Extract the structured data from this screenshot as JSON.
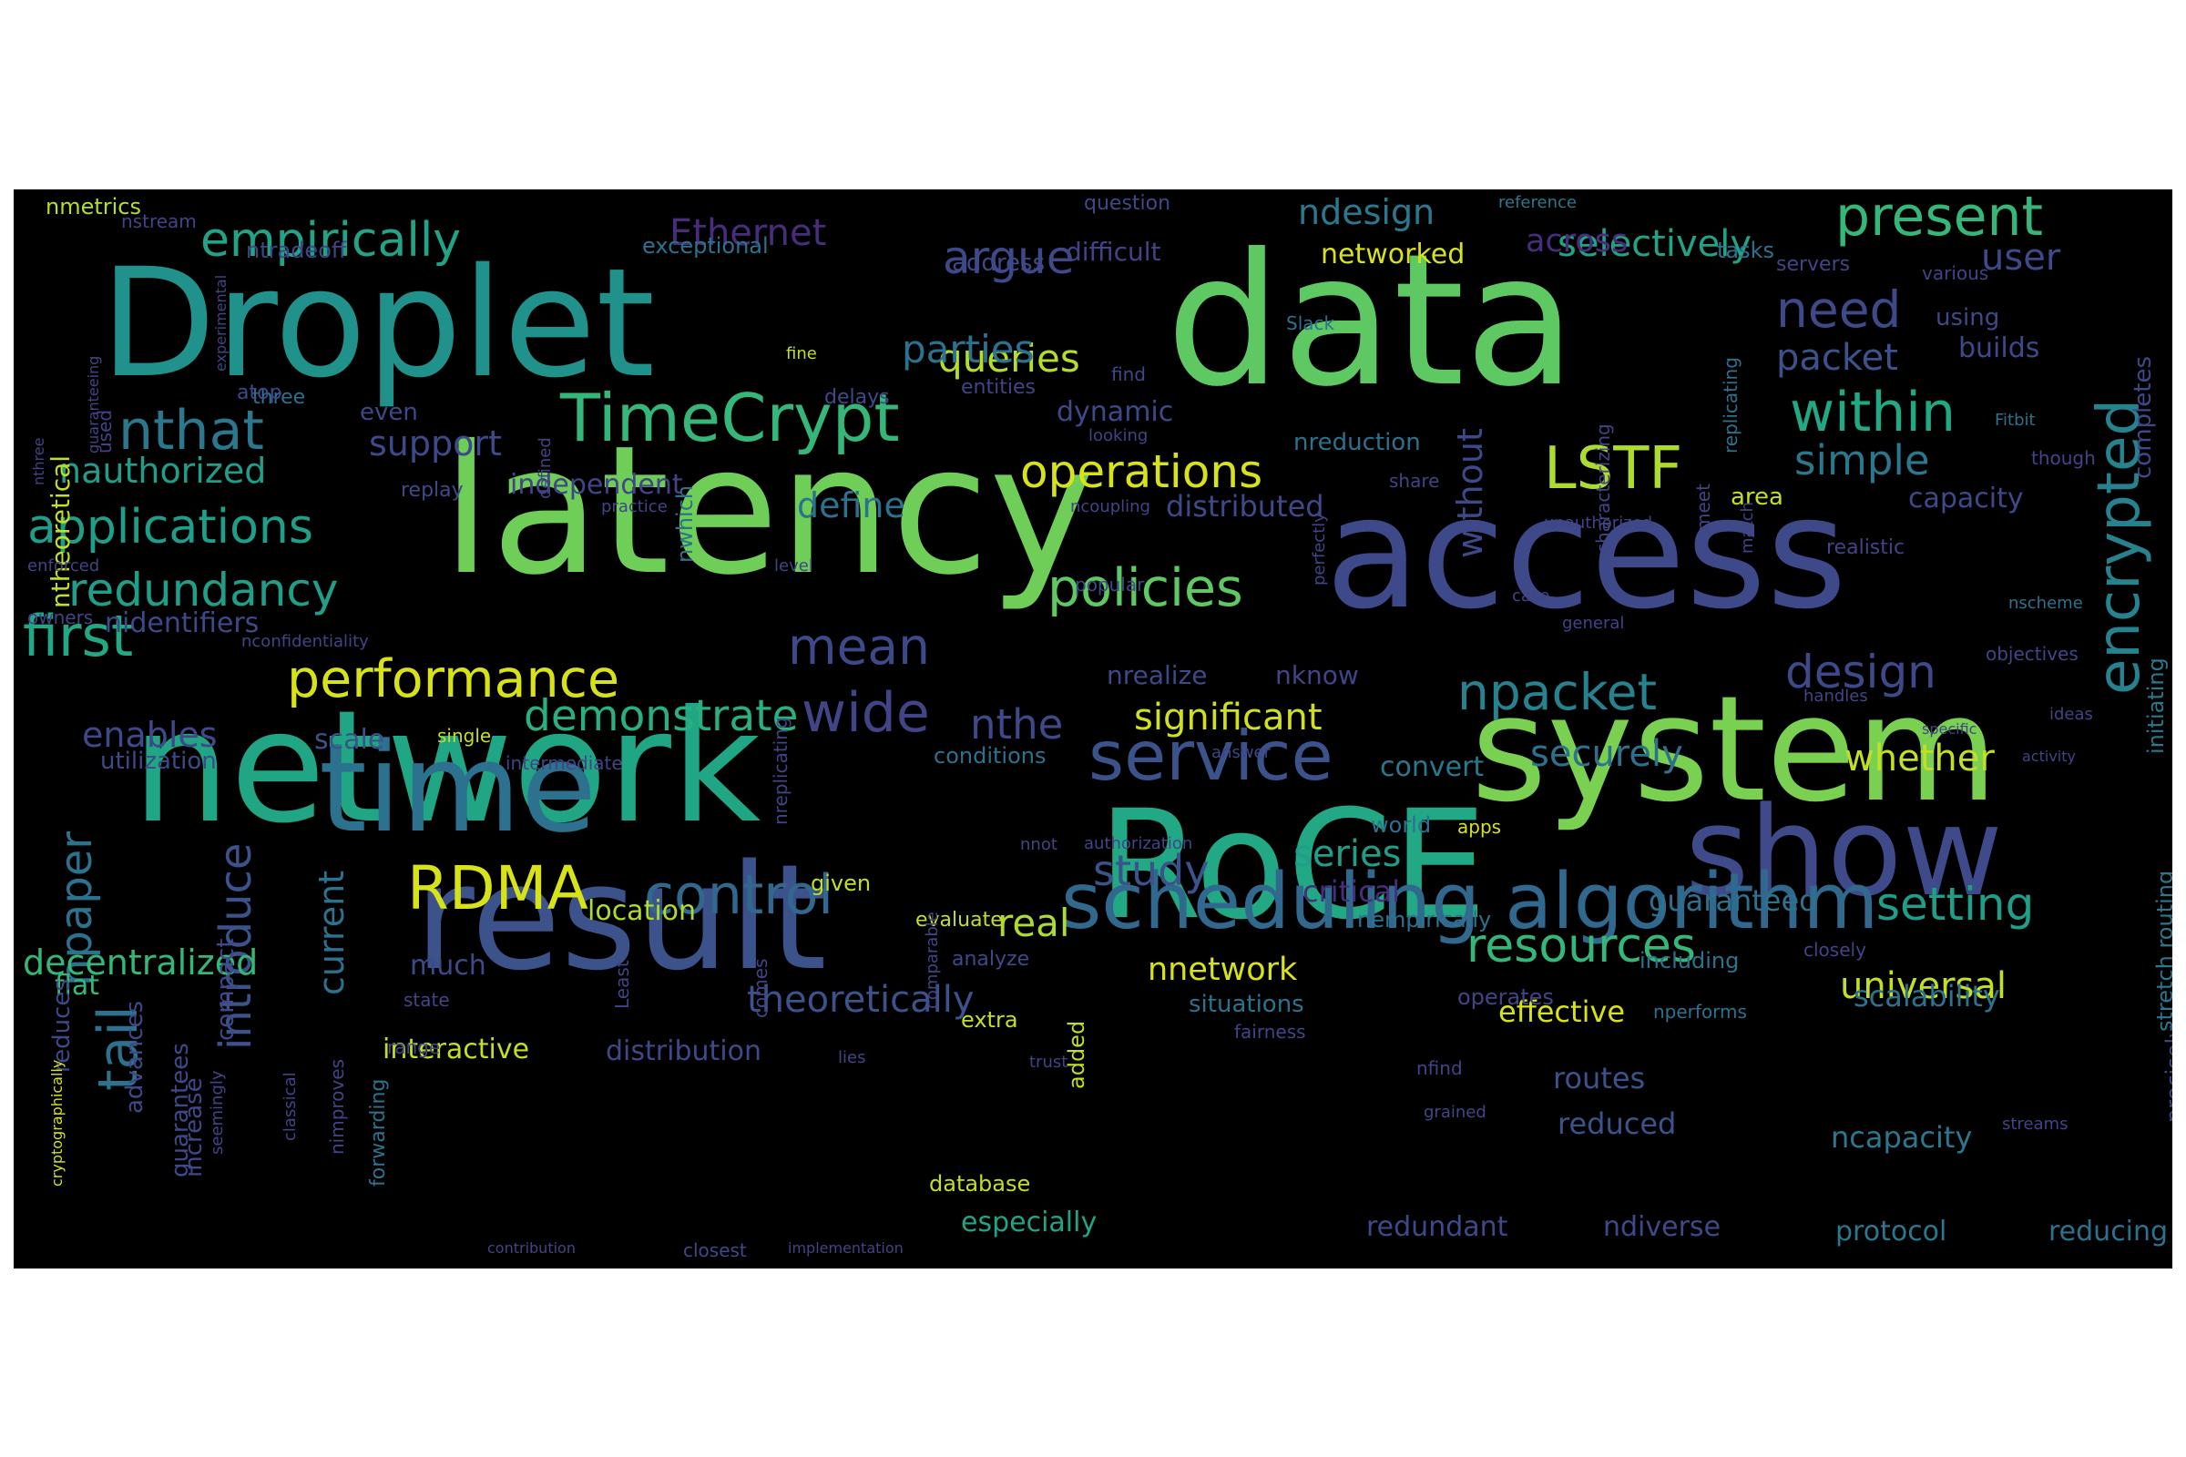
{
  "palette": {
    "background": "#000000",
    "page": "#ffffff",
    "word_colors": [
      "#fde725",
      "#b5de2b",
      "#6ece58",
      "#35b779",
      "#1f9e89",
      "#26828e",
      "#31688e",
      "#3e4989",
      "#482878",
      "#440154"
    ]
  },
  "words": [
    {
      "text": "data",
      "color": "#5ec962"
    },
    {
      "text": "latency",
      "color": "#6ece58"
    },
    {
      "text": "access",
      "color": "#3e4989"
    },
    {
      "text": "Droplet",
      "color": "#21918c"
    },
    {
      "text": "network",
      "color": "#21a685"
    },
    {
      "text": "system",
      "color": "#7ad151"
    },
    {
      "text": "result",
      "color": "#3b528b"
    },
    {
      "text": "RoCE",
      "color": "#22a884"
    },
    {
      "text": "show",
      "color": "#3e4a89"
    },
    {
      "text": "time",
      "color": "#2c728e"
    },
    {
      "text": "scheduling algorithm",
      "color": "#31688e"
    },
    {
      "text": "service",
      "color": "#3b528b"
    },
    {
      "text": "TimeCrypt",
      "color": "#35b779"
    },
    {
      "text": "encrypted",
      "color": "#26828e"
    },
    {
      "text": "LSTF",
      "color": "#addc30"
    },
    {
      "text": "RDMA",
      "color": "#d8e219"
    },
    {
      "text": "control",
      "color": "#31688e"
    },
    {
      "text": "present",
      "color": "#35b779"
    },
    {
      "text": "performance",
      "color": "#d8e219"
    },
    {
      "text": "npacket",
      "color": "#26828e"
    },
    {
      "text": "wide",
      "color": "#414487"
    },
    {
      "text": "policies",
      "color": "#5ec962"
    },
    {
      "text": "first",
      "color": "#22a884"
    },
    {
      "text": "nthat",
      "color": "#2a788e"
    },
    {
      "text": "within",
      "color": "#22a884"
    },
    {
      "text": "operations",
      "color": "#d8e219"
    },
    {
      "text": "applications",
      "color": "#1f9e89"
    },
    {
      "text": "empirically",
      "color": "#20a386"
    },
    {
      "text": "resources",
      "color": "#35b779"
    },
    {
      "text": "demonstrate",
      "color": "#2ab07f"
    },
    {
      "text": "mean",
      "color": "#3e4989"
    },
    {
      "text": "argue",
      "color": "#3e4989"
    },
    {
      "text": "setting",
      "color": "#1f9e89"
    },
    {
      "text": "design",
      "color": "#3e4989"
    },
    {
      "text": "need",
      "color": "#3e4989"
    },
    {
      "text": "redundancy",
      "color": "#1f9e89"
    },
    {
      "text": "tail",
      "color": "#2c728e"
    },
    {
      "text": "npaper",
      "color": "#2c728e"
    },
    {
      "text": "introduce",
      "color": "#3b528b"
    },
    {
      "text": "universal",
      "color": "#c2df23"
    },
    {
      "text": "study",
      "color": "#3b528b"
    },
    {
      "text": "simple",
      "color": "#2a788e"
    },
    {
      "text": "theoretically",
      "color": "#3b528b"
    },
    {
      "text": "significant",
      "color": "#d0e11c"
    },
    {
      "text": "queries",
      "color": "#b5de2b"
    },
    {
      "text": "nthe",
      "color": "#3e4989"
    },
    {
      "text": "real",
      "color": "#addc30"
    },
    {
      "text": "parties",
      "color": "#2c728e"
    },
    {
      "text": "decentralized",
      "color": "#35b779"
    },
    {
      "text": "securely",
      "color": "#2c728e"
    },
    {
      "text": "series",
      "color": "#1f9e89"
    },
    {
      "text": "selectively",
      "color": "#20a386"
    },
    {
      "text": "packet",
      "color": "#3b528b"
    },
    {
      "text": "whether",
      "color": "#c2df23"
    },
    {
      "text": "Ethernet",
      "color": "#472d7b"
    },
    {
      "text": "current",
      "color": "#2c728e"
    },
    {
      "text": "ndesign",
      "color": "#2a788e"
    },
    {
      "text": "define",
      "color": "#2c728e"
    },
    {
      "text": "enables",
      "color": "#3e4989"
    },
    {
      "text": "nauthorized",
      "color": "#1f9e89"
    },
    {
      "text": "support",
      "color": "#3e4989"
    },
    {
      "text": "without",
      "color": "#3e4989"
    },
    {
      "text": "nnetwork",
      "color": "#d8e219"
    },
    {
      "text": "effective",
      "color": "#d8e219"
    },
    {
      "text": "interactive",
      "color": "#c2df23"
    },
    {
      "text": "distribution",
      "color": "#3e4989"
    },
    {
      "text": "location",
      "color": "#addc30"
    },
    {
      "text": "nidentifiers",
      "color": "#3e4989"
    },
    {
      "text": "networked",
      "color": "#d8e219"
    },
    {
      "text": "distributed",
      "color": "#3e4989"
    },
    {
      "text": "independent",
      "color": "#414487"
    },
    {
      "text": "across",
      "color": "#472d7b"
    },
    {
      "text": "routes",
      "color": "#3b528b"
    },
    {
      "text": "reduced",
      "color": "#3b528b"
    },
    {
      "text": "ncapacity",
      "color": "#2a788e"
    },
    {
      "text": "guaranteed",
      "color": "#2c728e"
    },
    {
      "text": "scalability",
      "color": "#2c728e"
    },
    {
      "text": "flat",
      "color": "#35b779"
    },
    {
      "text": "user",
      "color": "#3e4989"
    },
    {
      "text": "builds",
      "color": "#3e4989"
    },
    {
      "text": "capacity",
      "color": "#3e4989"
    },
    {
      "text": "dynamic",
      "color": "#3e4989"
    },
    {
      "text": "nreduction",
      "color": "#2c728e"
    },
    {
      "text": "critical",
      "color": "#472d7b"
    },
    {
      "text": "convert",
      "color": "#2a788e"
    },
    {
      "text": "nrealize",
      "color": "#3e4989"
    },
    {
      "text": "nknow",
      "color": "#414487"
    },
    {
      "text": "scale",
      "color": "#3b528b"
    },
    {
      "text": "especially",
      "color": "#20a386"
    },
    {
      "text": "redundant",
      "color": "#3e4989"
    },
    {
      "text": "ndiverse",
      "color": "#3e4989"
    },
    {
      "text": "protocol",
      "color": "#2a788e"
    },
    {
      "text": "reducing",
      "color": "#2c728e"
    },
    {
      "text": "ntheoretical",
      "color": "#c2df23"
    },
    {
      "text": "nmetrics",
      "color": "#b5de2b"
    },
    {
      "text": "ntradeoff",
      "color": "#414487"
    },
    {
      "text": "exceptional",
      "color": "#2c728e"
    },
    {
      "text": "address",
      "color": "#3e4989"
    },
    {
      "text": "difficult",
      "color": "#414487"
    },
    {
      "text": "question",
      "color": "#3e4989"
    },
    {
      "text": "reference",
      "color": "#2a788e"
    },
    {
      "text": "tasks",
      "color": "#2c728e"
    },
    {
      "text": "servers",
      "color": "#414487"
    },
    {
      "text": "various",
      "color": "#414487"
    },
    {
      "text": "using",
      "color": "#3e4989"
    },
    {
      "text": "completes",
      "color": "#3e4989"
    },
    {
      "text": "utilization",
      "color": "#3e4989"
    },
    {
      "text": "advances",
      "color": "#3e4989"
    },
    {
      "text": "compact",
      "color": "#3e4989"
    },
    {
      "text": "increase",
      "color": "#3e4989"
    },
    {
      "text": "guarantees",
      "color": "#3e4989"
    },
    {
      "text": "reduces",
      "color": "#3e4989"
    },
    {
      "text": "initiating",
      "color": "#2a788e"
    },
    {
      "text": "stretch routing",
      "color": "#2a788e"
    },
    {
      "text": "precisely",
      "color": "#3e4989"
    },
    {
      "text": "realistic",
      "color": "#414487"
    },
    {
      "text": "area",
      "color": "#c2df23"
    },
    {
      "text": "three",
      "color": "#2c728e"
    },
    {
      "text": "even",
      "color": "#3e4989"
    },
    {
      "text": "delays",
      "color": "#3e4989"
    },
    {
      "text": "entities",
      "color": "#414487"
    },
    {
      "text": "fine",
      "color": "#c2df23"
    },
    {
      "text": "Slack",
      "color": "#2c728e"
    },
    {
      "text": "find",
      "color": "#3e4989"
    },
    {
      "text": "Fitbit",
      "color": "#2c728e"
    },
    {
      "text": "though",
      "color": "#414487"
    },
    {
      "text": "objectives",
      "color": "#414487"
    },
    {
      "text": "ideas",
      "color": "#414487"
    },
    {
      "text": "activity",
      "color": "#414487"
    },
    {
      "text": "specific",
      "color": "#414487"
    },
    {
      "text": "nscheme",
      "color": "#2c728e"
    },
    {
      "text": "unauthorized",
      "color": "#414487"
    },
    {
      "text": "share",
      "color": "#414487"
    },
    {
      "text": "ncoupling",
      "color": "#414487"
    },
    {
      "text": "replay",
      "color": "#3e4989"
    },
    {
      "text": "practice",
      "color": "#414487"
    },
    {
      "text": "popular",
      "color": "#3e4989"
    },
    {
      "text": "level",
      "color": "#414487"
    },
    {
      "text": "looking",
      "color": "#414487"
    },
    {
      "text": "case",
      "color": "#414487"
    },
    {
      "text": "general",
      "color": "#414487"
    },
    {
      "text": "nwhich",
      "color": "#2c728e"
    },
    {
      "text": "defined",
      "color": "#414487"
    },
    {
      "text": "enforced",
      "color": "#414487"
    },
    {
      "text": "owners",
      "color": "#414487"
    },
    {
      "text": "nconfidentiality",
      "color": "#414487"
    },
    {
      "text": "perfectly",
      "color": "#414487"
    },
    {
      "text": "match",
      "color": "#414487"
    },
    {
      "text": "meet",
      "color": "#414487"
    },
    {
      "text": "handles",
      "color": "#414487"
    },
    {
      "text": "single",
      "color": "#c2df23"
    },
    {
      "text": "intermediate",
      "color": "#414487"
    },
    {
      "text": "answer",
      "color": "#414487"
    },
    {
      "text": "conditions",
      "color": "#2c728e"
    },
    {
      "text": "world",
      "color": "#2c728e"
    },
    {
      "text": "apps",
      "color": "#d8e219"
    },
    {
      "text": "authorization",
      "color": "#414487"
    },
    {
      "text": "nnot",
      "color": "#414487"
    },
    {
      "text": "given",
      "color": "#c2df23"
    },
    {
      "text": "evaluate",
      "color": "#c2df23"
    },
    {
      "text": "nempirically",
      "color": "#2c728e"
    },
    {
      "text": "closely",
      "color": "#414487"
    },
    {
      "text": "including",
      "color": "#2c728e"
    },
    {
      "text": "analyze",
      "color": "#3e4989"
    },
    {
      "text": "operates",
      "color": "#414487"
    },
    {
      "text": "nperforms",
      "color": "#2c728e"
    },
    {
      "text": "situations",
      "color": "#2c728e"
    },
    {
      "text": "fairness",
      "color": "#414487"
    },
    {
      "text": "state",
      "color": "#414487"
    },
    {
      "text": "much",
      "color": "#3e4989"
    },
    {
      "text": "range",
      "color": "#414487"
    },
    {
      "text": "Least",
      "color": "#414487"
    },
    {
      "text": "comes",
      "color": "#414487"
    },
    {
      "text": "nreplicating",
      "color": "#414487"
    },
    {
      "text": "replicating",
      "color": "#2c728e"
    },
    {
      "text": "characterizing",
      "color": "#414487"
    },
    {
      "text": "extra",
      "color": "#c2df23"
    },
    {
      "text": "trust",
      "color": "#414487"
    },
    {
      "text": "lies",
      "color": "#414487"
    },
    {
      "text": "added",
      "color": "#c2df23"
    },
    {
      "text": "comparable",
      "color": "#414487"
    },
    {
      "text": "nfind",
      "color": "#414487"
    },
    {
      "text": "grained",
      "color": "#414487"
    },
    {
      "text": "streams",
      "color": "#414487"
    },
    {
      "text": "database",
      "color": "#c2df23"
    },
    {
      "text": "nimproves",
      "color": "#414487"
    },
    {
      "text": "forwarding",
      "color": "#2c728e"
    },
    {
      "text": "classical",
      "color": "#414487"
    },
    {
      "text": "seemingly",
      "color": "#414487"
    },
    {
      "text": "cryptographically",
      "color": "#d8e219"
    },
    {
      "text": "contribution",
      "color": "#414487"
    },
    {
      "text": "closest",
      "color": "#3e4989"
    },
    {
      "text": "implementation",
      "color": "#414487"
    },
    {
      "text": "nstream",
      "color": "#414487"
    },
    {
      "text": "guaranteeing",
      "color": "#414487"
    },
    {
      "text": "experimental",
      "color": "#414487"
    },
    {
      "text": "atop",
      "color": "#3e4989"
    },
    {
      "text": "used",
      "color": "#414487"
    },
    {
      "text": "nthree",
      "color": "#414487"
    }
  ]
}
